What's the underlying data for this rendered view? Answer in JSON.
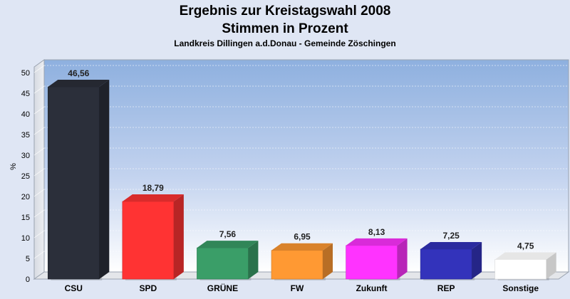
{
  "chart_data": {
    "type": "bar",
    "title": "Ergebnis zur Kreistagswahl 2008",
    "title2": "Stimmen in Prozent",
    "subtitle": "Landkreis Dillingen a.d.Donau - Gemeinde Zöschingen",
    "xlabel": "",
    "ylabel": "%",
    "ylim": [
      0,
      50
    ],
    "yticks": [
      0,
      5,
      10,
      15,
      20,
      25,
      30,
      35,
      40,
      45,
      50
    ],
    "grid": true,
    "categories": [
      "CSU",
      "SPD",
      "GRÜNE",
      "FW",
      "Zukunft",
      "REP",
      "Sonstige"
    ],
    "values": [
      46.56,
      18.79,
      7.56,
      6.95,
      8.13,
      7.25,
      4.75
    ],
    "value_labels": [
      "46,56",
      "18,79",
      "7,56",
      "6,95",
      "8,13",
      "7,25",
      "4,75"
    ],
    "colors": [
      "#2b2f3a",
      "#ff3333",
      "#3a9e68",
      "#ff9933",
      "#ff33ff",
      "#3333bb",
      "#ffffff"
    ]
  }
}
